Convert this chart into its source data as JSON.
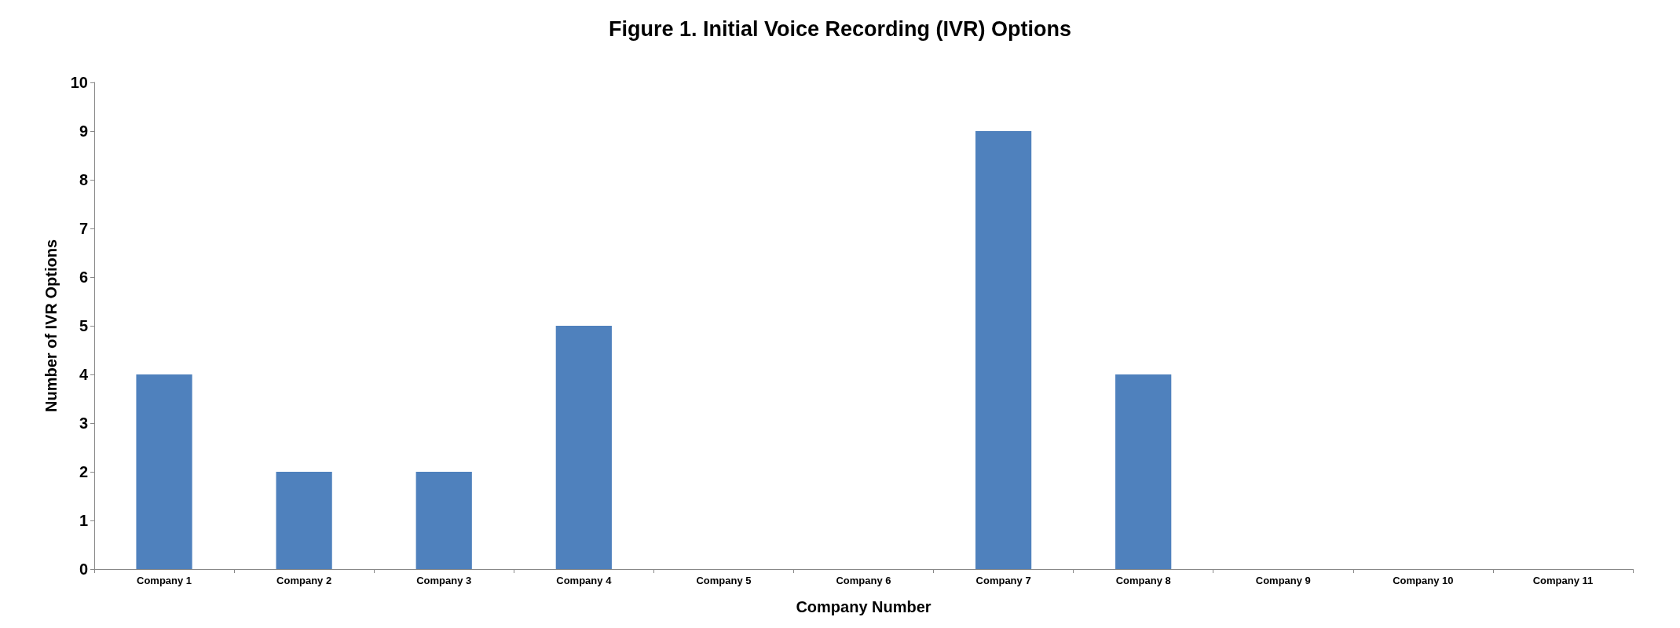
{
  "chart_data": {
    "type": "bar",
    "title": "Figure 1. Initial Voice Recording (IVR) Options",
    "xlabel": "Company Number",
    "ylabel": "Number of IVR Options",
    "categories": [
      "Company 1",
      "Company 2",
      "Company 3",
      "Company 4",
      "Company 5",
      "Company 6",
      "Company 7",
      "Company 8",
      "Company 9",
      "Company 10",
      "Company 11"
    ],
    "values": [
      4,
      2,
      2,
      5,
      0,
      0,
      9,
      4,
      0,
      0,
      0
    ],
    "color": "#4f81bd",
    "ylim": [
      0,
      10
    ],
    "yticks": [
      0,
      1,
      2,
      3,
      4,
      5,
      6,
      7,
      8,
      9,
      10
    ],
    "grid": false
  }
}
